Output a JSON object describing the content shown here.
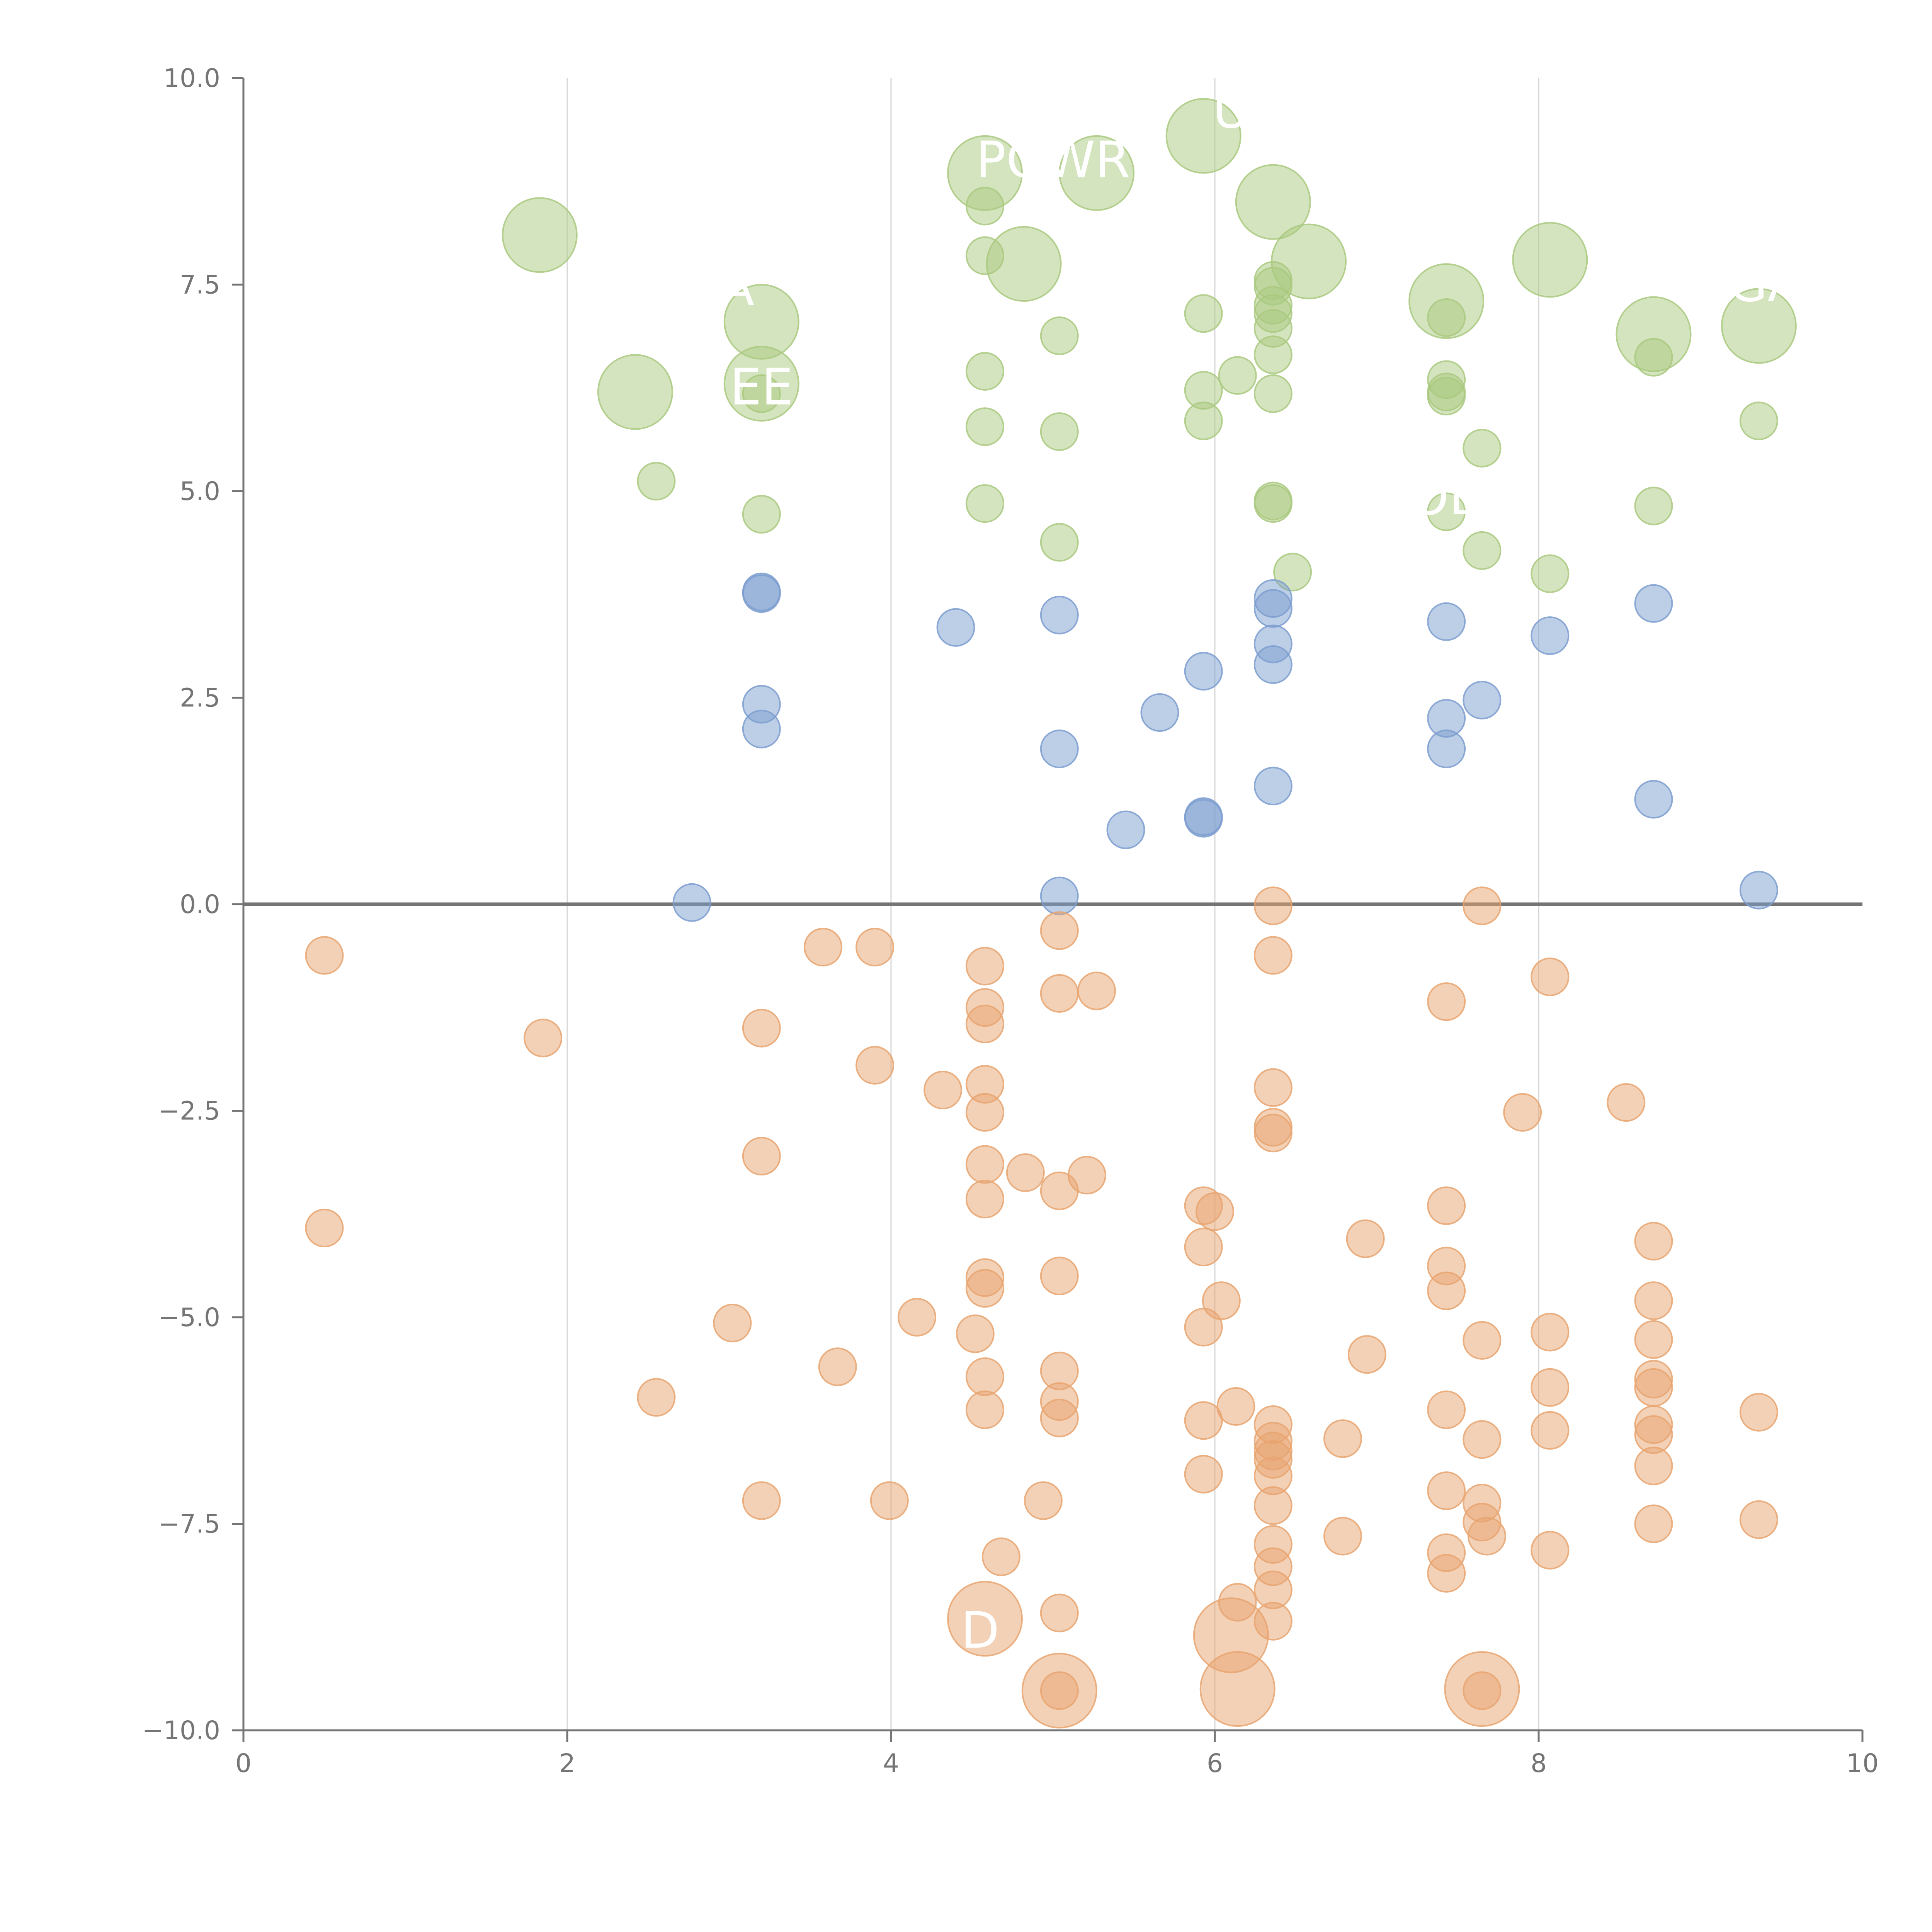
{
  "chart_data": {
    "type": "scatter",
    "title": "",
    "xlabel": "",
    "ylabel": "",
    "xlim": [
      0,
      10
    ],
    "ylim": [
      -10,
      10
    ],
    "x_ticks": [
      {
        "value": 0,
        "label": "0"
      },
      {
        "value": 2,
        "label": "2"
      },
      {
        "value": 4,
        "label": "4"
      },
      {
        "value": 6,
        "label": "6"
      },
      {
        "value": 8,
        "label": "8"
      },
      {
        "value": 10,
        "label": "10"
      }
    ],
    "y_ticks": [
      {
        "value": 10,
        "label": "10.0"
      },
      {
        "value": 7.5,
        "label": "7.5"
      },
      {
        "value": 5,
        "label": "5.0"
      },
      {
        "value": 2.5,
        "label": "2.5"
      },
      {
        "value": 0,
        "label": "0.0"
      },
      {
        "value": -2.5,
        "label": "−2.5"
      },
      {
        "value": -5,
        "label": "−5.0"
      },
      {
        "value": -7.5,
        "label": "−7.5"
      },
      {
        "value": -10,
        "label": "−10.0"
      }
    ],
    "grid": "vertical",
    "legend": "none",
    "reference_line_y": 0,
    "series": [
      {
        "color": "#a9c97f",
        "points": [
          [
            1.83,
            8.1,
            "l"
          ],
          [
            2.42,
            6.2,
            "l"
          ],
          [
            2.55,
            5.12,
            "s"
          ],
          [
            3.2,
            7.05,
            "l"
          ],
          [
            3.2,
            6.3,
            "l"
          ],
          [
            3.2,
            6.18,
            "s"
          ],
          [
            3.2,
            4.72,
            "s"
          ],
          [
            4.58,
            8.85,
            "l"
          ],
          [
            4.82,
            7.75,
            "l"
          ],
          [
            5.27,
            8.85,
            "l"
          ],
          [
            4.58,
            8.45,
            "s"
          ],
          [
            4.58,
            7.85,
            "s"
          ],
          [
            4.58,
            6.45,
            "s"
          ],
          [
            4.58,
            5.78,
            "s"
          ],
          [
            4.58,
            4.85,
            "s"
          ],
          [
            5.04,
            6.88,
            "s"
          ],
          [
            5.04,
            5.72,
            "s"
          ],
          [
            5.04,
            4.38,
            "s"
          ],
          [
            5.93,
            9.3,
            "l"
          ],
          [
            5.93,
            7.15,
            "s"
          ],
          [
            5.93,
            6.22,
            "s"
          ],
          [
            5.93,
            5.85,
            "s"
          ],
          [
            6.14,
            6.4,
            "s"
          ],
          [
            6.36,
            8.5,
            "l"
          ],
          [
            6.58,
            7.78,
            "l"
          ],
          [
            6.36,
            7.55,
            "s"
          ],
          [
            6.36,
            7.48,
            "s"
          ],
          [
            6.36,
            7.25,
            "s"
          ],
          [
            6.36,
            7.15,
            "s"
          ],
          [
            6.36,
            6.97,
            "s"
          ],
          [
            6.36,
            6.65,
            "s"
          ],
          [
            6.36,
            6.18,
            "s"
          ],
          [
            6.36,
            4.88,
            "s"
          ],
          [
            6.36,
            4.85,
            "s"
          ],
          [
            6.48,
            4.02,
            "s"
          ],
          [
            7.43,
            7.3,
            "l"
          ],
          [
            7.43,
            7.1,
            "s"
          ],
          [
            7.43,
            6.35,
            "s"
          ],
          [
            7.43,
            6.2,
            "s"
          ],
          [
            7.43,
            6.15,
            "s"
          ],
          [
            7.43,
            4.75,
            "s"
          ],
          [
            7.65,
            5.52,
            "s"
          ],
          [
            7.65,
            4.28,
            "s"
          ],
          [
            8.07,
            7.8,
            "l"
          ],
          [
            8.07,
            4.0,
            "s"
          ],
          [
            8.71,
            6.9,
            "l"
          ],
          [
            8.71,
            6.62,
            "s"
          ],
          [
            8.71,
            4.82,
            "s"
          ],
          [
            9.36,
            7.0,
            "l"
          ],
          [
            9.36,
            5.85,
            "s"
          ]
        ]
      },
      {
        "color": "#7c9ecf",
        "points": [
          [
            2.77,
            0.02
          ],
          [
            3.2,
            3.78
          ],
          [
            3.2,
            3.76
          ],
          [
            3.2,
            2.42
          ],
          [
            3.2,
            2.12
          ],
          [
            4.4,
            3.35
          ],
          [
            5.04,
            3.5
          ],
          [
            5.04,
            1.88
          ],
          [
            5.04,
            0.1
          ],
          [
            5.45,
            0.9
          ],
          [
            5.66,
            2.32
          ],
          [
            5.93,
            2.82
          ],
          [
            5.93,
            1.06
          ],
          [
            5.93,
            1.04
          ],
          [
            6.36,
            3.7
          ],
          [
            6.36,
            3.58
          ],
          [
            6.36,
            3.15
          ],
          [
            6.36,
            2.9
          ],
          [
            6.36,
            1.43
          ],
          [
            7.43,
            3.42
          ],
          [
            7.43,
            2.25
          ],
          [
            7.43,
            1.88
          ],
          [
            7.65,
            2.47
          ],
          [
            8.07,
            3.25
          ],
          [
            8.71,
            3.64
          ],
          [
            8.71,
            1.27
          ],
          [
            9.36,
            0.17
          ]
        ]
      },
      {
        "color": "#e8a470",
        "points": [
          [
            0.5,
            -0.62,
            "s"
          ],
          [
            0.5,
            -3.92,
            "s"
          ],
          [
            1.85,
            -1.62,
            "s"
          ],
          [
            2.55,
            -5.97,
            "s"
          ],
          [
            3.02,
            -5.07,
            "s"
          ],
          [
            3.2,
            -1.5,
            "s"
          ],
          [
            3.2,
            -3.05,
            "s"
          ],
          [
            3.2,
            -7.22,
            "s"
          ],
          [
            3.58,
            -0.52,
            "s"
          ],
          [
            3.67,
            -5.6,
            "s"
          ],
          [
            3.9,
            -0.52,
            "s"
          ],
          [
            3.9,
            -1.95,
            "s"
          ],
          [
            3.99,
            -7.22,
            "s"
          ],
          [
            4.16,
            -5.0,
            "s"
          ],
          [
            4.32,
            -2.25,
            "s"
          ],
          [
            4.52,
            -5.2,
            "s"
          ],
          [
            4.58,
            -0.75,
            "s"
          ],
          [
            4.58,
            -1.25,
            "s"
          ],
          [
            4.58,
            -1.45,
            "s"
          ],
          [
            4.58,
            -2.18,
            "s"
          ],
          [
            4.58,
            -2.52,
            "s"
          ],
          [
            4.58,
            -3.15,
            "s"
          ],
          [
            4.58,
            -3.57,
            "s"
          ],
          [
            4.58,
            -4.52,
            "s"
          ],
          [
            4.58,
            -4.65,
            "s"
          ],
          [
            4.58,
            -5.72,
            "s"
          ],
          [
            4.58,
            -6.12,
            "s"
          ],
          [
            4.58,
            -8.65,
            "l"
          ],
          [
            4.68,
            -7.9,
            "s"
          ],
          [
            4.83,
            -3.25,
            "s"
          ],
          [
            4.94,
            -7.22,
            "s"
          ],
          [
            5.04,
            -0.32,
            "s"
          ],
          [
            5.04,
            -1.08,
            "s"
          ],
          [
            5.04,
            -3.47,
            "s"
          ],
          [
            5.04,
            -4.5,
            "s"
          ],
          [
            5.04,
            -5.65,
            "s"
          ],
          [
            5.04,
            -6.02,
            "s"
          ],
          [
            5.04,
            -6.22,
            "s"
          ],
          [
            5.04,
            -8.58,
            "s"
          ],
          [
            5.04,
            -9.52,
            "l"
          ],
          [
            5.04,
            -9.52,
            "s"
          ],
          [
            5.21,
            -3.28,
            "s"
          ],
          [
            5.27,
            -1.05,
            "s"
          ],
          [
            5.93,
            -3.65,
            "s"
          ],
          [
            5.93,
            -4.15,
            "s"
          ],
          [
            5.93,
            -5.12,
            "s"
          ],
          [
            5.93,
            -6.25,
            "s"
          ],
          [
            5.93,
            -6.9,
            "s"
          ],
          [
            6.0,
            -3.72,
            "s"
          ],
          [
            6.04,
            -4.8,
            "s"
          ],
          [
            6.13,
            -6.08,
            "s"
          ],
          [
            6.14,
            -8.45,
            "s"
          ],
          [
            6.1,
            -8.85,
            "l"
          ],
          [
            6.14,
            -9.5,
            "l"
          ],
          [
            6.36,
            -0.02,
            "s"
          ],
          [
            6.36,
            -0.62,
            "s"
          ],
          [
            6.36,
            -2.22,
            "s"
          ],
          [
            6.36,
            -2.7,
            "s"
          ],
          [
            6.36,
            -2.77,
            "s"
          ],
          [
            6.36,
            -6.3,
            "s"
          ],
          [
            6.36,
            -6.5,
            "s"
          ],
          [
            6.36,
            -6.62,
            "s"
          ],
          [
            6.36,
            -6.72,
            "s"
          ],
          [
            6.36,
            -6.92,
            "s"
          ],
          [
            6.36,
            -7.28,
            "s"
          ],
          [
            6.36,
            -7.75,
            "s"
          ],
          [
            6.36,
            -8.02,
            "s"
          ],
          [
            6.36,
            -8.3,
            "s"
          ],
          [
            6.36,
            -8.68,
            "s"
          ],
          [
            6.79,
            -6.47,
            "s"
          ],
          [
            6.79,
            -7.65,
            "s"
          ],
          [
            6.93,
            -4.05,
            "s"
          ],
          [
            6.94,
            -5.45,
            "s"
          ],
          [
            7.43,
            -1.18,
            "s"
          ],
          [
            7.43,
            -3.65,
            "s"
          ],
          [
            7.43,
            -4.38,
            "s"
          ],
          [
            7.43,
            -4.68,
            "s"
          ],
          [
            7.43,
            -6.12,
            "s"
          ],
          [
            7.43,
            -7.1,
            "s"
          ],
          [
            7.43,
            -7.85,
            "s"
          ],
          [
            7.43,
            -8.1,
            "s"
          ],
          [
            7.65,
            -0.02,
            "s"
          ],
          [
            7.65,
            -5.28,
            "s"
          ],
          [
            7.65,
            -6.48,
            "s"
          ],
          [
            7.65,
            -7.25,
            "s"
          ],
          [
            7.65,
            -7.48,
            "s"
          ],
          [
            7.65,
            -9.5,
            "l"
          ],
          [
            7.65,
            -9.52,
            "s"
          ],
          [
            7.68,
            -7.65,
            "s"
          ],
          [
            7.9,
            -2.52,
            "s"
          ],
          [
            8.07,
            -0.88,
            "s"
          ],
          [
            8.07,
            -5.18,
            "s"
          ],
          [
            8.07,
            -5.85,
            "s"
          ],
          [
            8.07,
            -6.37,
            "s"
          ],
          [
            8.07,
            -7.82,
            "s"
          ],
          [
            8.54,
            -2.4,
            "s"
          ],
          [
            8.71,
            -4.08,
            "s"
          ],
          [
            8.71,
            -4.8,
            "s"
          ],
          [
            8.71,
            -5.27,
            "s"
          ],
          [
            8.71,
            -5.75,
            "s"
          ],
          [
            8.71,
            -5.85,
            "s"
          ],
          [
            8.71,
            -6.3,
            "s"
          ],
          [
            8.71,
            -6.42,
            "s"
          ],
          [
            8.71,
            -6.8,
            "s"
          ],
          [
            8.71,
            -7.5,
            "s"
          ],
          [
            9.36,
            -6.15,
            "s"
          ],
          [
            9.36,
            -7.45,
            "s"
          ]
        ]
      }
    ],
    "labels": [
      {
        "text": "POWR",
        "x": 5.0,
        "y": 8.8
      },
      {
        "text": "U",
        "x": 6.1,
        "y": 9.4
      },
      {
        "text": "A",
        "x": 3.05,
        "y": 7.25
      },
      {
        "text": "EE",
        "x": 3.2,
        "y": 6.05
      },
      {
        "text": "OB",
        "x": 7.43,
        "y": 4.72
      },
      {
        "text": "GA",
        "x": 9.4,
        "y": 7.3
      },
      {
        "text": "D",
        "x": 4.55,
        "y": -9.0
      }
    ]
  }
}
